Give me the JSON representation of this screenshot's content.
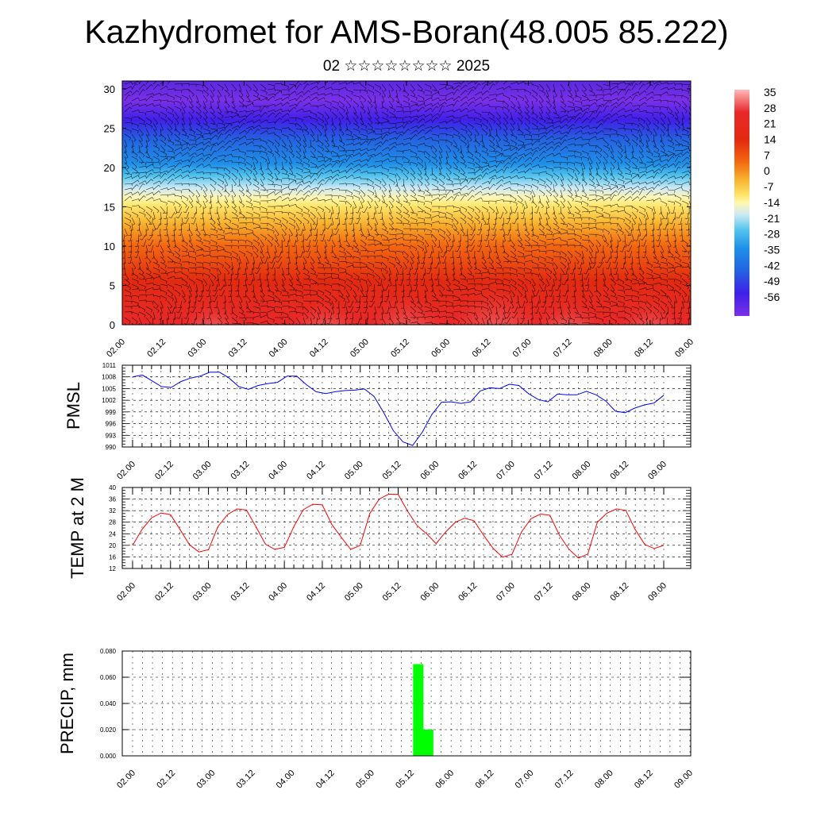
{
  "title": "Kazhydromet for AMS-Boran(48.005 85.222)",
  "subtitle": "02 ☆☆☆☆☆☆☆☆ 2025",
  "colors": {
    "pmsl_line": "#0000ff",
    "temp_line": "#ff0000",
    "precip_bar": "#00ff00"
  },
  "time_labels": [
    "02.00",
    "02.12",
    "03.00",
    "03.12",
    "04.00",
    "04.12",
    "05.00",
    "05.12",
    "06.00",
    "06.12",
    "07.00",
    "07.12",
    "08.00",
    "08.12",
    "09.00"
  ],
  "chart_data": [
    {
      "id": "cross-section",
      "type": "heatmap",
      "description_value": "temperature cross-section with wind barbs",
      "y_ticks": [
        0,
        5,
        10,
        15,
        20,
        25,
        30
      ],
      "ylim": [
        0,
        31
      ],
      "colorbar": {
        "labels": [
          "35",
          "28",
          "21",
          "14",
          "7",
          "0",
          "-7",
          "-14",
          "-21",
          "-28",
          "-35",
          "-42",
          "-49",
          "-56"
        ],
        "range": [
          -63,
          42
        ]
      },
      "blobs": [
        {
          "time": 1.1,
          "height": 1.5,
          "value": 36
        },
        {
          "time": 2.5,
          "height": 1.5,
          "value": 37
        },
        {
          "time": 3.5,
          "height": 2.0,
          "value": 38
        },
        {
          "time": 4.6,
          "height": 2.5,
          "value": 40
        },
        {
          "time": 5.5,
          "height": 1.5,
          "value": 37
        },
        {
          "time": 6.5,
          "height": 1.5,
          "value": 36
        }
      ]
    },
    {
      "id": "pmsl",
      "type": "line",
      "ylabel": "PMSL",
      "y_ticks": [
        990,
        993,
        996,
        999,
        1002,
        1005,
        1008,
        1011
      ],
      "ylim": [
        990,
        1011
      ],
      "step_hours": 3,
      "values": [
        1008,
        1008.5,
        1007,
        1005.5,
        1005.3,
        1006.8,
        1007.7,
        1008.2,
        1009.2,
        1009.2,
        1007.7,
        1005.5,
        1004.8,
        1005.8,
        1006.3,
        1006.6,
        1008.2,
        1008.2,
        1006,
        1004.2,
        1003.7,
        1004.2,
        1004.5,
        1004.6,
        1004.9,
        1003,
        998.8,
        994.2,
        991.3,
        990.4,
        993.8,
        998.4,
        1001.5,
        1001.6,
        1001.2,
        1001.6,
        1004.4,
        1005.2,
        1005,
        1006.1,
        1005.8,
        1003.7,
        1002.2,
        1001.6,
        1003.6,
        1003.4,
        1003.4,
        1004.3,
        1003.4,
        1001.8,
        999.2,
        998.8,
        1000,
        1000.8,
        1001.3,
        1003.3
      ]
    },
    {
      "id": "temp2m",
      "type": "line",
      "ylabel": "TEMP at 2 M",
      "y_ticks": [
        12,
        16,
        20,
        24,
        28,
        32,
        36,
        40
      ],
      "ylim": [
        12,
        40
      ],
      "step_hours": 3,
      "values": [
        20,
        25.5,
        29.5,
        31.2,
        30.6,
        25.5,
        20.2,
        17.7,
        18.5,
        26.5,
        30.6,
        32.6,
        32.2,
        26.5,
        20.4,
        18.6,
        19.3,
        26.5,
        32.3,
        34.2,
        34,
        27.2,
        22.8,
        18.6,
        20,
        31,
        36,
        37.7,
        37.6,
        31.8,
        26.8,
        24,
        20.6,
        24.6,
        27.9,
        29.4,
        28.5,
        23.5,
        19,
        15.9,
        16.9,
        24.6,
        29.2,
        30.8,
        30.4,
        23.5,
        18.7,
        15.6,
        17,
        28,
        31.1,
        32.6,
        32.1,
        25.4,
        20.3,
        18.9,
        20
      ]
    },
    {
      "id": "precip",
      "type": "bar",
      "ylabel": "PRECIP, mm",
      "y_ticks": [
        "0.000",
        "0.020",
        "0.040",
        "0.060",
        "0.080"
      ],
      "ylim": [
        0,
        0.08
      ],
      "bars": [
        {
          "time": "05.15",
          "value": 0.07
        },
        {
          "time": "05.18",
          "value": 0.02
        }
      ]
    }
  ]
}
